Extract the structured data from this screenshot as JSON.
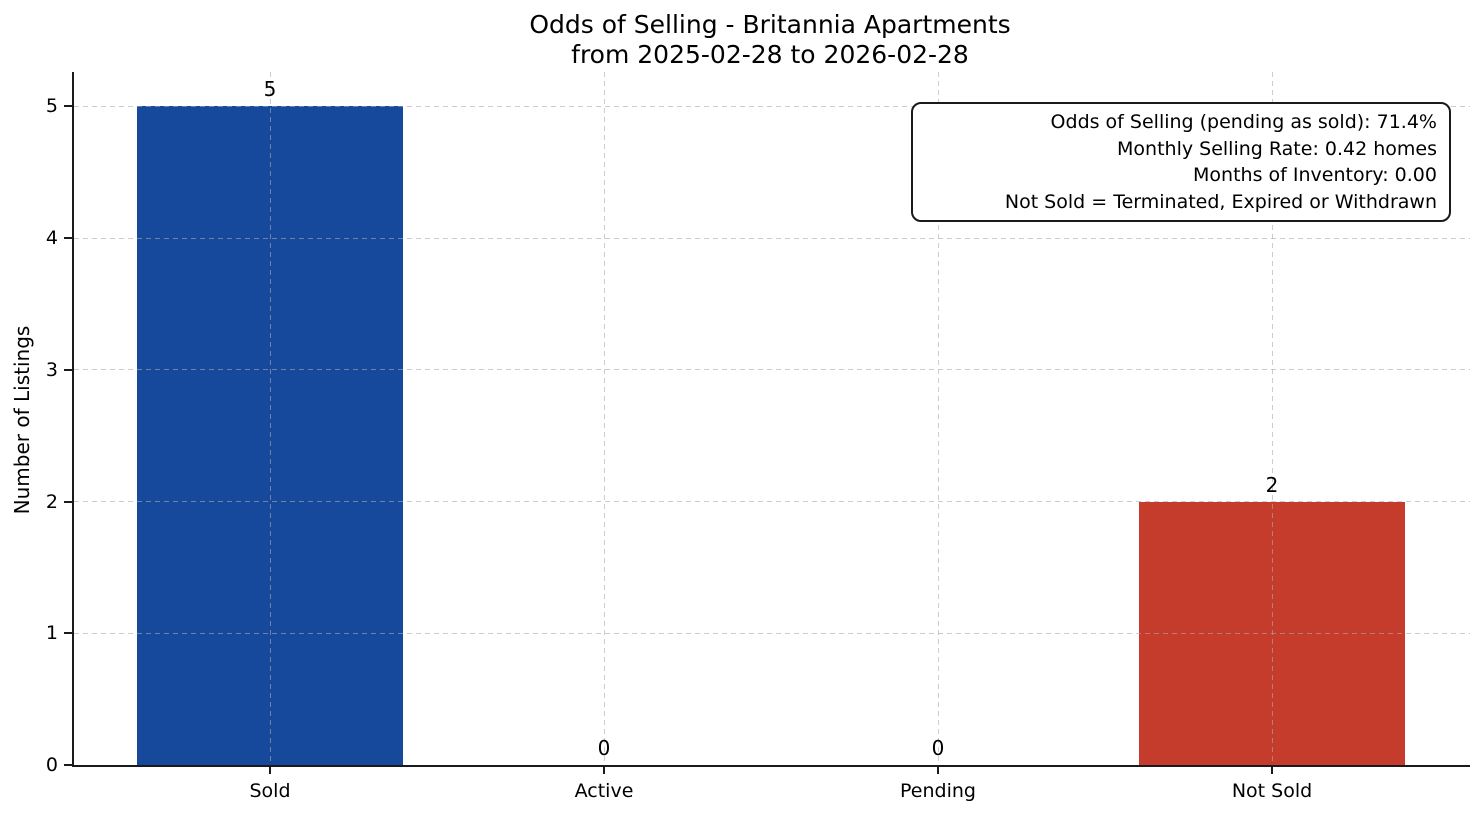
{
  "figure": {
    "title_line1": "Odds of Selling - Britannia Apartments",
    "title_line2": "from 2025-02-28 to 2026-02-28"
  },
  "chart_data": {
    "type": "bar",
    "title": "Odds of Selling - Britannia Apartments\nfrom 2025-02-28 to 2026-02-28",
    "categories": [
      "Sold",
      "Active",
      "Pending",
      "Not Sold"
    ],
    "values": [
      5,
      0,
      0,
      2
    ],
    "bar_value_labels": [
      "5",
      "0",
      "0",
      "2"
    ],
    "bar_colors": [
      "#16489c",
      null,
      null,
      "#c53b2c"
    ],
    "xlabel": "",
    "ylabel": "Number of Listings",
    "yticks": [
      0,
      1,
      2,
      3,
      4,
      5
    ],
    "ylim": [
      0,
      5.26
    ],
    "grid": {
      "show": true,
      "axis": "both",
      "style": "dashed",
      "drawn_above_bars": true
    },
    "legend": {
      "show": false
    }
  },
  "annotation_box": {
    "lines": [
      "Odds of Selling (pending as sold): 71.4%",
      "Monthly Selling Rate: 0.42 homes",
      "Months of Inventory: 0.00",
      "Not Sold = Terminated, Expired or Withdrawn"
    ]
  },
  "colors": {
    "sold_bar": "#16489c",
    "not_sold_bar": "#c53b2c",
    "background": "#ffffff",
    "spine": "#1a1a1a",
    "grid": "#c8c8c8",
    "text": "#000000"
  }
}
